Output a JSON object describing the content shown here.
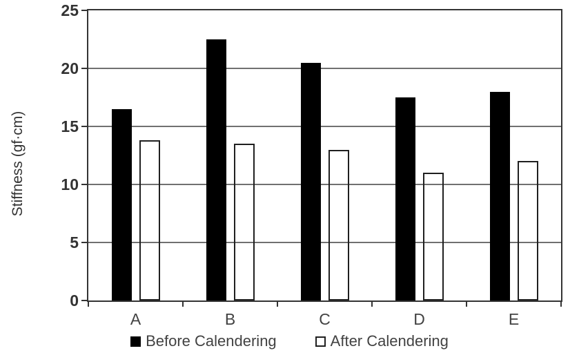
{
  "chart_data": {
    "type": "bar",
    "ylabel": "Stiffness (gf·cm)",
    "categories": [
      "A",
      "B",
      "C",
      "D",
      "E"
    ],
    "series": [
      {
        "name": "Before Calendering",
        "values": [
          16.5,
          22.5,
          20.5,
          17.5,
          18.0
        ],
        "fill": "#000000",
        "outline": "#000000"
      },
      {
        "name": "After Calendering",
        "values": [
          13.8,
          13.5,
          13.0,
          11.0,
          12.0
        ],
        "fill": "none",
        "outline": "#1f1f1f"
      }
    ],
    "ylim": [
      0,
      25
    ],
    "yticks": [
      0,
      5,
      10,
      15,
      20,
      25
    ],
    "gridlines_at": [
      5,
      10,
      15,
      20
    ],
    "grid": true,
    "legend_position": "bottom",
    "colors": {
      "grid": "#707070",
      "axis": "#333333",
      "text": "#424242",
      "bar_before": "#000000",
      "bar_after_outline": "#1f1f1f",
      "background": "#ffffff"
    }
  }
}
